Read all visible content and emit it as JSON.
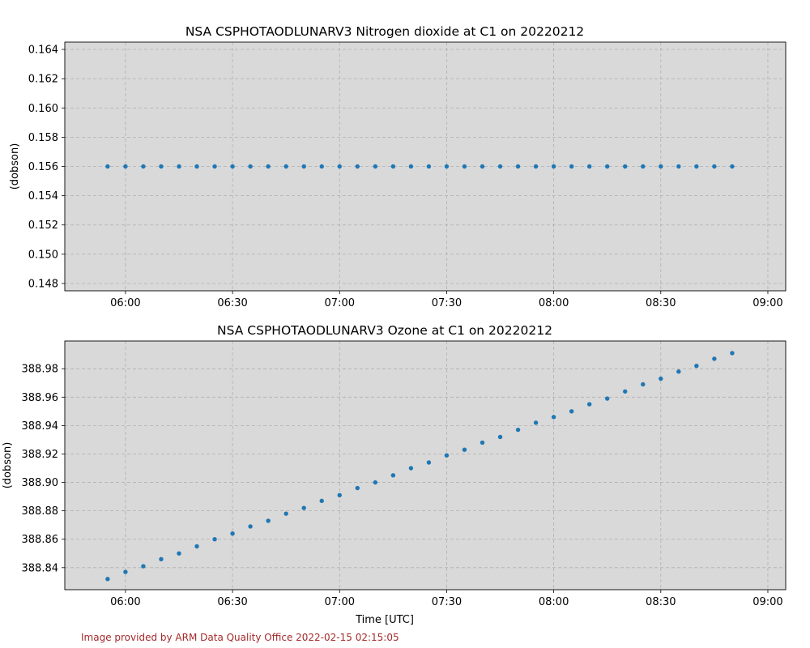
{
  "footer": {
    "text": "Image provided by ARM Data Quality Office 2022-02-15 02:15:05",
    "color": "#a52a2a"
  },
  "colors": {
    "plot_background": "#d9d9d9",
    "marker": "#1f77b4",
    "grid": "#b0b0b0"
  },
  "chart_data": [
    {
      "type": "scatter",
      "title": "NSA CSPHOTAODLUNARV3 Nitrogen dioxide at C1 on 20220212",
      "xlabel": "",
      "ylabel": "(dobson)",
      "grid": true,
      "xlim": [
        "05:43",
        "09:05"
      ],
      "ylim": [
        0.1475,
        0.1645
      ],
      "xticks": [
        "06:00",
        "06:30",
        "07:00",
        "07:30",
        "08:00",
        "08:30",
        "09:00"
      ],
      "yticks": [
        "0.148",
        "0.150",
        "0.152",
        "0.154",
        "0.156",
        "0.158",
        "0.160",
        "0.162",
        "0.164"
      ],
      "x": [
        "05:55",
        "06:00",
        "06:05",
        "06:10",
        "06:15",
        "06:20",
        "06:25",
        "06:30",
        "06:35",
        "06:40",
        "06:45",
        "06:50",
        "06:55",
        "07:00",
        "07:05",
        "07:10",
        "07:15",
        "07:20",
        "07:25",
        "07:30",
        "07:35",
        "07:40",
        "07:45",
        "07:50",
        "07:55",
        "08:00",
        "08:05",
        "08:10",
        "08:15",
        "08:20",
        "08:25",
        "08:30",
        "08:35",
        "08:40",
        "08:45",
        "08:50"
      ],
      "y": [
        0.156,
        0.156,
        0.156,
        0.156,
        0.156,
        0.156,
        0.156,
        0.156,
        0.156,
        0.156,
        0.156,
        0.156,
        0.156,
        0.156,
        0.156,
        0.156,
        0.156,
        0.156,
        0.156,
        0.156,
        0.156,
        0.156,
        0.156,
        0.156,
        0.156,
        0.156,
        0.156,
        0.156,
        0.156,
        0.156,
        0.156,
        0.156,
        0.156,
        0.156,
        0.156,
        0.156
      ]
    },
    {
      "type": "scatter",
      "title": "NSA CSPHOTAODLUNARV3 Ozone at C1 on 20220212",
      "xlabel": "Time [UTC]",
      "ylabel": "(dobson)",
      "grid": true,
      "xlim": [
        "05:43",
        "09:05"
      ],
      "ylim": [
        388.8245,
        388.9995
      ],
      "xticks": [
        "06:00",
        "06:30",
        "07:00",
        "07:30",
        "08:00",
        "08:30",
        "09:00"
      ],
      "yticks": [
        "388.84",
        "388.86",
        "388.88",
        "388.90",
        "388.92",
        "388.94",
        "388.96",
        "388.98"
      ],
      "x": [
        "05:55",
        "06:00",
        "06:05",
        "06:10",
        "06:15",
        "06:20",
        "06:25",
        "06:30",
        "06:35",
        "06:40",
        "06:45",
        "06:50",
        "06:55",
        "07:00",
        "07:05",
        "07:10",
        "07:15",
        "07:20",
        "07:25",
        "07:30",
        "07:35",
        "07:40",
        "07:45",
        "07:50",
        "07:55",
        "08:00",
        "08:05",
        "08:10",
        "08:15",
        "08:20",
        "08:25",
        "08:30",
        "08:35",
        "08:40",
        "08:45",
        "08:50"
      ],
      "y": [
        388.832,
        388.837,
        388.841,
        388.846,
        388.85,
        388.855,
        388.86,
        388.864,
        388.869,
        388.873,
        388.878,
        388.882,
        388.887,
        388.891,
        388.896,
        388.9,
        388.905,
        388.91,
        388.914,
        388.919,
        388.923,
        388.928,
        388.932,
        388.937,
        388.942,
        388.946,
        388.95,
        388.955,
        388.959,
        388.964,
        388.969,
        388.973,
        388.978,
        388.982,
        388.987,
        388.991
      ]
    }
  ]
}
